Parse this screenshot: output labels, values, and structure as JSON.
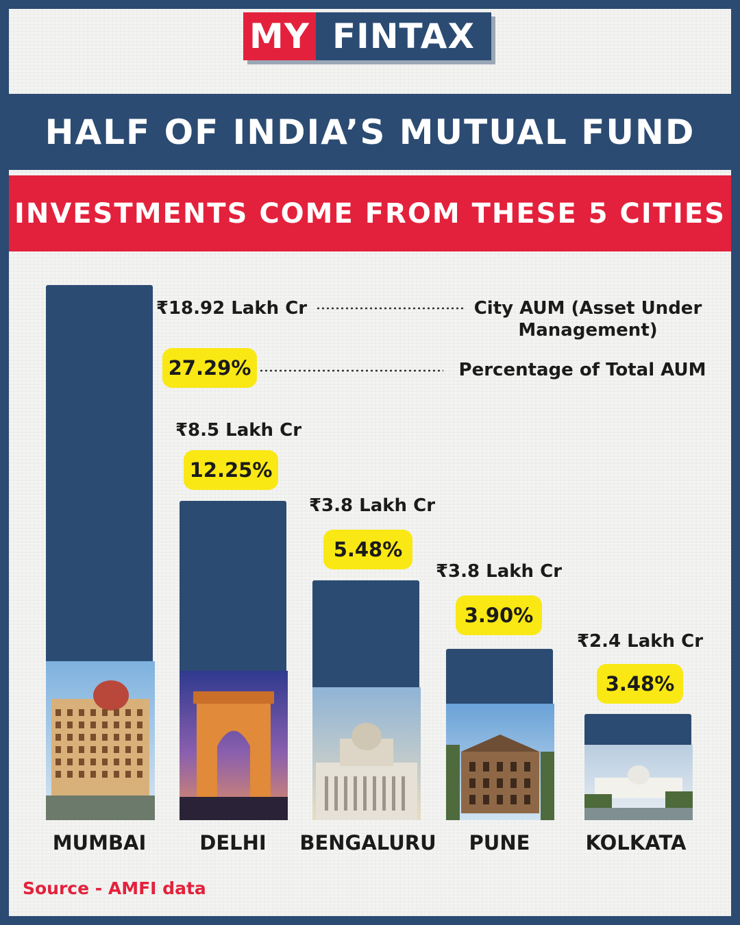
{
  "brand": {
    "part1": "MY",
    "part2": "FINTAX"
  },
  "headline": {
    "line1": "HALF OF INDIA’S MUTUAL FUND",
    "line2": "INVESTMENTS COME FROM THESE 5 CITIES"
  },
  "legend": {
    "aum_label_line1": "City AUM (Asset Under",
    "aum_label_line2": "Management)",
    "pct_label": "Percentage of Total AUM"
  },
  "source": "Source - AMFI data",
  "colors": {
    "navy": "#2b4b72",
    "red": "#e3213c",
    "highlight": "#f9e814"
  },
  "chart_data": {
    "type": "bar",
    "title": "HALF OF INDIA’S MUTUAL FUND INVESTMENTS COME FROM THESE 5 CITIES",
    "categories": [
      "MUMBAI",
      "DELHI",
      "BENGALURU",
      "PUNE",
      "KOLKATA"
    ],
    "series": [
      {
        "name": "City AUM (Asset Under Management)",
        "values": [
          18.92,
          8.5,
          3.8,
          3.8,
          2.4
        ],
        "labels": [
          "₹18.92 Lakh Cr",
          "₹8.5 Lakh Cr",
          "₹3.8 Lakh Cr",
          "₹3.8 Lakh Cr",
          "₹2.4 Lakh Cr"
        ]
      },
      {
        "name": "Percentage of Total AUM",
        "values": [
          27.29,
          12.25,
          5.48,
          3.9,
          3.48
        ],
        "labels": [
          "27.29%",
          "12.25%",
          "5.48%",
          "3.90%",
          "3.48%"
        ]
      }
    ],
    "photos": [
      "taj-mahal-palace-hotel",
      "india-gate",
      "vidhana-soudha",
      "pune-heritage-building",
      "victoria-memorial"
    ]
  }
}
